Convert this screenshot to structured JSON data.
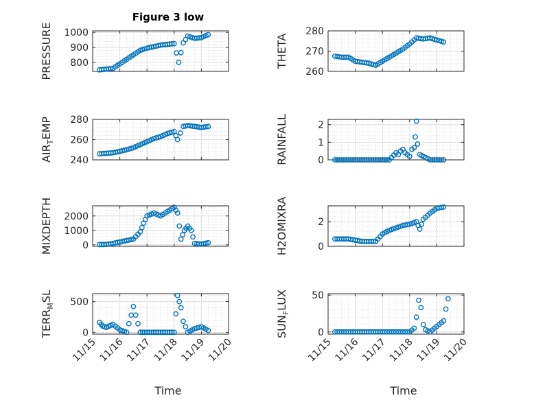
{
  "figure": {
    "title": "Figure 3 low",
    "xlabel": "Time",
    "x_ticks": [
      "11/15",
      "11/16",
      "11/17",
      "11/18",
      "11/19",
      "11/20"
    ],
    "series_color": "#0072bd"
  },
  "chart_data": [
    {
      "type": "scatter",
      "title": "Figure 3 low",
      "ylabel": "PRESSURE",
      "ylim": [
        740,
        1010
      ],
      "y_ticks": [
        800,
        900,
        1000
      ],
      "xlim": [
        "11/15",
        "11/20"
      ],
      "xlabel": "",
      "x": [
        "11/15 06:00",
        "11/15 12:00",
        "11/15 18:00",
        "11/16 00:00",
        "11/16 06:00",
        "11/16 12:00",
        "11/16 18:00",
        "11/17 00:00",
        "11/17 06:00",
        "11/17 12:00",
        "11/17 18:00",
        "11/18 00:00",
        "11/18 04:00",
        "11/18 08:00",
        "11/18 12:00",
        "11/18 18:00",
        "11/19 00:00",
        "11/19 06:00"
      ],
      "values": [
        750,
        755,
        760,
        790,
        820,
        850,
        880,
        895,
        905,
        915,
        920,
        925,
        800,
        930,
        975,
        960,
        965,
        985
      ]
    },
    {
      "type": "scatter",
      "ylabel": "THETA",
      "ylim": [
        260,
        280
      ],
      "y_ticks": [
        260,
        270,
        280
      ],
      "xlim": [
        "11/15",
        "11/20"
      ],
      "xlabel": "",
      "x": [
        "11/15 06:00",
        "11/15 12:00",
        "11/15 18:00",
        "11/16 00:00",
        "11/16 06:00",
        "11/16 12:00",
        "11/16 18:00",
        "11/17 00:00",
        "11/17 06:00",
        "11/17 12:00",
        "11/17 18:00",
        "11/18 00:00",
        "11/18 06:00",
        "11/18 12:00",
        "11/18 18:00",
        "11/19 00:00",
        "11/19 06:00"
      ],
      "values": [
        267.5,
        267,
        267,
        265,
        264.5,
        264,
        263,
        265,
        267,
        269,
        271,
        273.5,
        276.5,
        276,
        276.5,
        275.5,
        274.5
      ]
    },
    {
      "type": "scatter",
      "ylabel": "AIR_TEMP",
      "ylim": [
        240,
        280
      ],
      "y_ticks": [
        240,
        260,
        280
      ],
      "xlim": [
        "11/15",
        "11/20"
      ],
      "xlabel": "",
      "x": [
        "11/15 06:00",
        "11/15 12:00",
        "11/15 18:00",
        "11/16 00:00",
        "11/16 06:00",
        "11/16 12:00",
        "11/16 18:00",
        "11/17 00:00",
        "11/17 06:00",
        "11/17 12:00",
        "11/17 18:00",
        "11/18 00:00",
        "11/18 03:00",
        "11/18 08:00",
        "11/18 12:00",
        "11/18 18:00",
        "11/19 00:00",
        "11/19 06:00"
      ],
      "values": [
        246,
        246.5,
        247,
        248.5,
        250,
        252,
        255,
        258,
        261,
        263,
        266,
        268,
        260,
        273,
        274,
        273,
        272,
        273
      ]
    },
    {
      "type": "scatter",
      "ylabel": "RAINFALL",
      "ylim": [
        0,
        2.3
      ],
      "y_ticks": [
        0,
        1,
        2
      ],
      "xlim": [
        "11/15",
        "11/20"
      ],
      "xlabel": "",
      "x": [
        "11/15 06:00",
        "11/15 18:00",
        "11/16 06:00",
        "11/16 18:00",
        "11/17 06:00",
        "11/17 12:00",
        "11/17 14:00",
        "11/17 16:00",
        "11/17 18:00",
        "11/17 20:00",
        "11/17 22:00",
        "11/18 00:00",
        "11/18 02:00",
        "11/18 04:00",
        "11/18 05:00",
        "11/18 06:00",
        "11/18 07:00",
        "11/18 09:00",
        "11/18 18:00",
        "11/19 06:00"
      ],
      "values": [
        0,
        0,
        0,
        0,
        0,
        0.4,
        0.3,
        0.5,
        0.6,
        0.4,
        0.3,
        0.2,
        0.6,
        0.7,
        1.3,
        2.2,
        0.9,
        0.3,
        0,
        0
      ]
    },
    {
      "type": "scatter",
      "ylabel": "MIXDEPTH",
      "ylim": [
        -100,
        2700
      ],
      "y_ticks": [
        0,
        1000,
        2000
      ],
      "xlim": [
        "11/15",
        "11/20"
      ],
      "xlabel": "",
      "x": [
        "11/15 06:00",
        "11/15 12:00",
        "11/15 18:00",
        "11/16 00:00",
        "11/16 06:00",
        "11/16 12:00",
        "11/16 18:00",
        "11/16 21:00",
        "11/17 00:00",
        "11/17 06:00",
        "11/17 12:00",
        "11/17 18:00",
        "11/18 00:00",
        "11/18 03:00",
        "11/18 06:00",
        "11/18 09:00",
        "11/18 12:00",
        "11/18 15:00",
        "11/18 18:00",
        "11/19 00:00",
        "11/19 06:00"
      ],
      "values": [
        20,
        30,
        100,
        200,
        300,
        400,
        900,
        1500,
        2000,
        2200,
        2000,
        2300,
        2600,
        2200,
        400,
        1000,
        1300,
        1000,
        100,
        50,
        150
      ]
    },
    {
      "type": "scatter",
      "ylabel": "H2OMIXRA",
      "ylim": [
        0,
        3.3
      ],
      "y_ticks": [
        0,
        2
      ],
      "xlim": [
        "11/15",
        "11/20"
      ],
      "xlabel": "",
      "x": [
        "11/15 06:00",
        "11/15 12:00",
        "11/15 18:00",
        "11/16 00:00",
        "11/16 06:00",
        "11/16 12:00",
        "11/16 18:00",
        "11/17 00:00",
        "11/17 06:00",
        "11/17 12:00",
        "11/17 18:00",
        "11/18 00:00",
        "11/18 06:00",
        "11/18 09:00",
        "11/18 12:00",
        "11/18 18:00",
        "11/19 00:00",
        "11/19 06:00"
      ],
      "values": [
        0.6,
        0.6,
        0.6,
        0.5,
        0.4,
        0.4,
        0.4,
        1.0,
        1.3,
        1.5,
        1.7,
        1.8,
        2.0,
        1.4,
        2.2,
        2.7,
        3.1,
        3.2
      ]
    },
    {
      "type": "scatter",
      "ylabel": "TERR_MSL",
      "ylim": [
        -30,
        630
      ],
      "y_ticks": [
        0,
        500
      ],
      "xlim": [
        "11/15",
        "11/20"
      ],
      "xlabel": "Time",
      "x": [
        "11/15 06:00",
        "11/15 09:00",
        "11/15 12:00",
        "11/15 18:00",
        "11/16 00:00",
        "11/16 06:00",
        "11/16 12:00",
        "11/16 18:00",
        "11/17 06:00",
        "11/17 18:00",
        "11/18 00:00",
        "11/18 03:00",
        "11/18 06:00",
        "11/18 08:00",
        "11/18 12:00",
        "11/18 18:00",
        "11/19 00:00",
        "11/19 06:00"
      ],
      "values": [
        160,
        100,
        80,
        130,
        40,
        0,
        420,
        0,
        0,
        0,
        0,
        600,
        400,
        180,
        0,
        60,
        90,
        30
      ]
    },
    {
      "type": "scatter",
      "ylabel": "SUN_FLUX",
      "ylim": [
        -3,
        52
      ],
      "y_ticks": [
        0,
        50
      ],
      "xlim": [
        "11/15",
        "11/20"
      ],
      "xlabel": "Time",
      "x": [
        "11/15 06:00",
        "11/15 18:00",
        "11/16 06:00",
        "11/16 18:00",
        "11/17 06:00",
        "11/17 18:00",
        "11/18 00:00",
        "11/18 04:00",
        "11/18 06:00",
        "11/18 08:00",
        "11/18 10:00",
        "11/18 12:00",
        "11/18 14:00",
        "11/18 18:00",
        "11/19 06:00",
        "11/19 08:00",
        "11/19 10:00"
      ],
      "values": [
        0,
        0,
        0,
        0,
        0,
        0,
        0,
        5,
        20,
        43,
        33,
        10,
        3,
        0,
        15,
        31,
        45
      ]
    }
  ]
}
